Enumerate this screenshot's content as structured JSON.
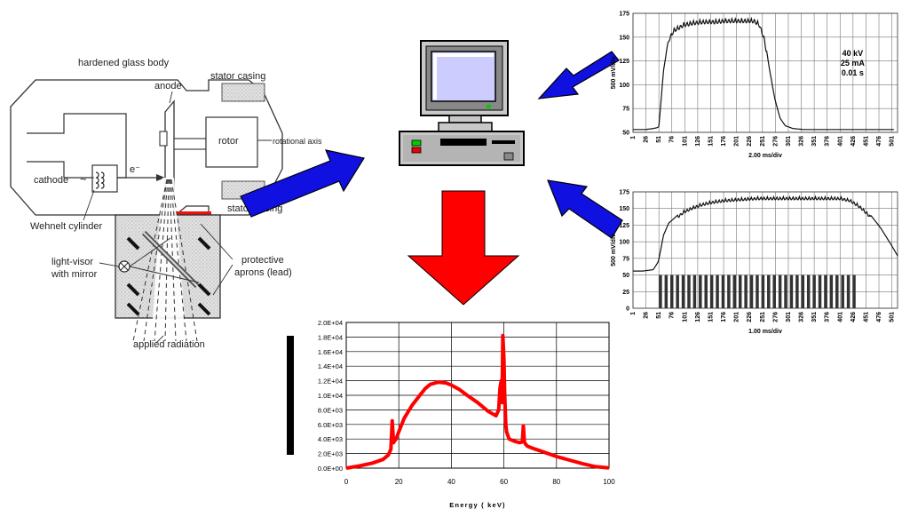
{
  "tube": {
    "glass_body": "hardened glass body",
    "stator_casing_top": "stator casing",
    "stator_casing_bottom": "stator casing",
    "anode": "anode",
    "rotor": "rotor",
    "rotational_axis": "rotational axis",
    "cathode": "cathode",
    "electron": "e⁻",
    "wehnelt": "Wehnelt cylinder",
    "light_visor_1": "light-visor",
    "light_visor_2": "with mirror",
    "aprons_1": "protective",
    "aprons_2": "aprons (lead)",
    "radiation": "applied radiation"
  },
  "colors": {
    "arrow_blue": "#1010e0",
    "arrow_red": "#ff0000",
    "spectrum_line": "#ff0000",
    "monitor_screen": "#ccccff",
    "computer_body": "#c8c8c8",
    "led_green": "#00cc00",
    "led_red": "#ee0000"
  },
  "icons": {
    "computer": "desktop-computer-icon",
    "arrow_top": "blue-arrow-icon",
    "arrow_mid": "blue-arrow-icon",
    "arrow_left": "blue-arrow-icon",
    "arrow_down": "red-arrow-icon"
  },
  "chart_data": [
    {
      "type": "line",
      "ylabel": "500 mV/div",
      "xlabel": "2.00 ms/div",
      "annotation": [
        "40 kV",
        "25 mA",
        "0.01 s"
      ],
      "ylim": [
        50,
        175
      ],
      "yticks": [
        "175",
        "150",
        "125",
        "100",
        "75",
        "50"
      ],
      "xticks": [
        "1",
        "26",
        "51",
        "76",
        "101",
        "126",
        "151",
        "176",
        "201",
        "226",
        "251",
        "276",
        "301",
        "326",
        "351",
        "376",
        "401",
        "426",
        "451",
        "476",
        "501"
      ],
      "series": [
        {
          "x": [
            1,
            26,
            40,
            48,
            51,
            60,
            70,
            80,
            90,
            100,
            120,
            140,
            160,
            180,
            200,
            220,
            235,
            245,
            255,
            265,
            275,
            285,
            295,
            310,
            330,
            360,
            400,
            440,
            480,
            505
          ],
          "values": [
            53,
            53,
            54,
            55,
            56,
            115,
            150,
            160,
            163,
            166,
            168,
            169,
            169,
            170,
            170,
            170,
            170,
            166,
            150,
            115,
            85,
            65,
            57,
            54,
            53,
            53,
            53,
            53,
            53,
            53
          ]
        }
      ]
    },
    {
      "type": "line",
      "ylabel": "500 mV/div",
      "xlabel": "1.00 ms/div",
      "ylim": [
        0,
        175
      ],
      "yticks": [
        "175",
        "150",
        "125",
        "100",
        "75",
        "50",
        "25",
        "0"
      ],
      "xticks": [
        "1",
        "26",
        "51",
        "76",
        "101",
        "126",
        "151",
        "176",
        "201",
        "226",
        "251",
        "276",
        "301",
        "326",
        "351",
        "376",
        "401",
        "426",
        "451",
        "476",
        "501"
      ],
      "series": [
        {
          "x": [
            1,
            20,
            40,
            50,
            60,
            70,
            80,
            90,
            100,
            120,
            140,
            160,
            180,
            200,
            220,
            240,
            260,
            280,
            300,
            320,
            340,
            360,
            380,
            400,
            420,
            440,
            460,
            480,
            500,
            515
          ],
          "values": [
            56,
            56,
            58,
            70,
            110,
            128,
            135,
            142,
            148,
            155,
            160,
            163,
            165,
            166,
            167,
            168,
            168,
            168,
            168,
            168,
            168,
            168,
            168,
            168,
            165,
            155,
            140,
            120,
            95,
            75
          ]
        }
      ],
      "pulses": {
        "start": 51,
        "end": 430,
        "height": 50
      }
    },
    {
      "type": "line",
      "xlabel": "Energy ( keV)",
      "ylabel": "",
      "xlim": [
        0,
        100
      ],
      "ylim": [
        0,
        20000
      ],
      "yticks": [
        "2.0E+04",
        "1.8E+04",
        "1.6E+04",
        "1.4E+04",
        "1.2E+04",
        "1.0E+04",
        "8.0E+03",
        "6.0E+03",
        "4.0E+03",
        "2.0E+03",
        "0.0E+00"
      ],
      "xticks": [
        "0",
        "20",
        "40",
        "60",
        "80",
        "100"
      ],
      "series": [
        {
          "x": [
            0,
            5,
            10,
            14,
            16,
            17,
            17.5,
            18,
            18.5,
            19,
            20,
            22,
            25,
            28,
            30,
            32,
            35,
            38,
            40,
            43,
            46,
            50,
            54,
            57,
            58,
            58.5,
            59,
            59.3,
            59.6,
            60,
            60.3,
            60.7,
            61,
            61.5,
            62,
            64,
            66,
            67,
            67.4,
            67.8,
            68.2,
            69,
            72,
            76,
            80,
            85,
            90,
            95,
            100
          ],
          "values": [
            0,
            300,
            700,
            1200,
            1800,
            2600,
            6500,
            3500,
            3800,
            4000,
            5000,
            6800,
            8600,
            10000,
            10900,
            11500,
            11800,
            11700,
            11400,
            10800,
            10000,
            9000,
            7800,
            7200,
            8000,
            11000,
            12000,
            9000,
            18200,
            15000,
            10000,
            6000,
            5000,
            4500,
            4000,
            3700,
            3500,
            3600,
            5800,
            3600,
            3300,
            3000,
            2600,
            2100,
            1600,
            1100,
            600,
            200,
            30
          ]
        }
      ]
    }
  ]
}
